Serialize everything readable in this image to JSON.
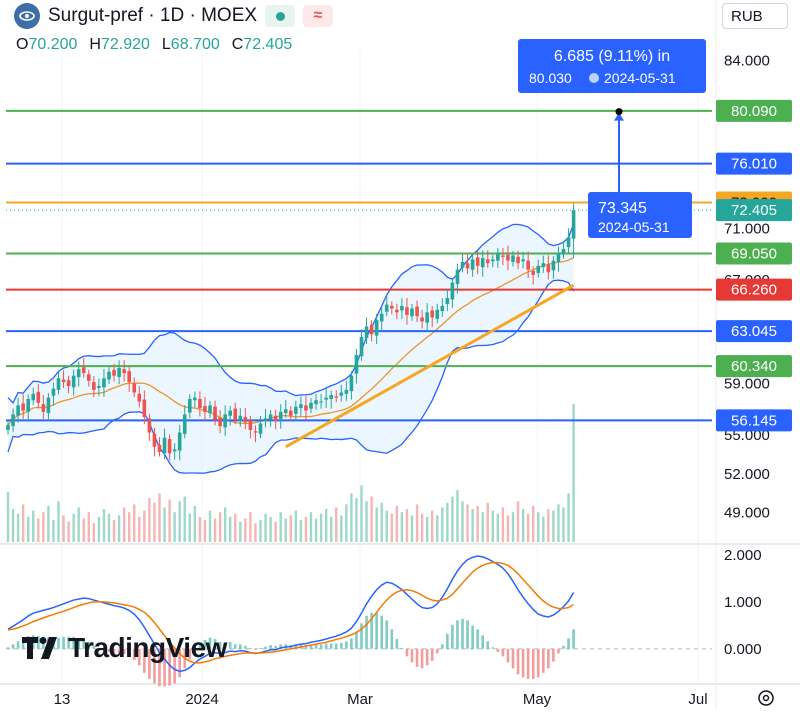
{
  "header": {
    "title": "Surgut-pref · 1D · MOEX",
    "currency": "RUB",
    "ohlc": [
      {
        "label": "O",
        "value": "70.200"
      },
      {
        "label": "H",
        "value": "72.920"
      },
      {
        "label": "L",
        "value": "68.700"
      },
      {
        "label": "C",
        "value": "72.405"
      }
    ],
    "brand": "TradingView",
    "icons": [
      "surgut-logo-icon",
      "market-status-dot-icon",
      "delay-wave-icon",
      "settings-gear-icon"
    ]
  },
  "colors": {
    "up": "#26a69a",
    "down": "#ef5350",
    "green_level": "#43a047",
    "blue_level": "#2962ff",
    "orange": "#f5a623",
    "red_level": "#e53935",
    "band": "#2962ff",
    "band_fill": "#e3f2fd",
    "measure": "#2962ff"
  },
  "chart_data": [
    {
      "type": "candlestick",
      "title": "",
      "x_ticks": [
        "13",
        "2024",
        "Mar",
        "May",
        "Jul"
      ],
      "y_ticks": [
        "84.000",
        "71.000",
        "67.000",
        "59.000",
        "55.000",
        "52.000",
        "49.000"
      ],
      "ylim": [
        46.5,
        86.5
      ],
      "horizontal_levels": [
        {
          "value": "80.090",
          "color": "green"
        },
        {
          "value": "76.010",
          "color": "blue"
        },
        {
          "value": "73.000",
          "color": "orange"
        },
        {
          "value": "72.405",
          "color": "teal",
          "note": "last price"
        },
        {
          "value": "69.050",
          "color": "green"
        },
        {
          "value": "66.260",
          "color": "red"
        },
        {
          "value": "63.045",
          "color": "blue"
        },
        {
          "value": "60.340",
          "color": "green"
        },
        {
          "value": "56.145",
          "color": "blue"
        }
      ],
      "measure": {
        "label_top": "6.685 (9.11%) in",
        "label_top_sub_price": "80.030",
        "label_top_sub_date": "2024-05-31",
        "label_bottom_price": "73.345",
        "label_bottom_date": "2024-05-31",
        "from": 73.345,
        "to": 80.03
      },
      "closes": [
        55.8,
        56.6,
        57.3,
        56.9,
        57.8,
        58.2,
        57.5,
        56.8,
        57.9,
        58.6,
        59.4,
        59.1,
        58.8,
        59.6,
        60.1,
        59.8,
        59.2,
        58.5,
        58.8,
        59.4,
        59.9,
        59.6,
        60.2,
        59.8,
        59.1,
        58.3,
        57.6,
        56.4,
        55.2,
        54.1,
        53.7,
        54.8,
        53.6,
        53.9,
        55.2,
        56.6,
        57.8,
        57.9,
        57.1,
        56.8,
        57.3,
        56.2,
        55.7,
        56.6,
        56.9,
        56.2,
        56.5,
        56.0,
        55.4,
        55.2,
        55.9,
        56.3,
        56.6,
        56.1,
        56.8,
        57.0,
        56.5,
        57.2,
        57.4,
        56.9,
        57.5,
        57.7,
        57.6,
        57.9,
        58.1,
        57.9,
        58.3,
        58.5,
        59.6,
        61.2,
        62.6,
        63.4,
        62.8,
        63.9,
        64.4,
        65.1,
        64.8,
        64.5,
        65.0,
        64.3,
        64.8,
        64.2,
        63.8,
        64.5,
        64.1,
        64.7,
        65.0,
        65.6,
        66.8,
        67.8,
        68.4,
        67.9,
        68.6,
        68.1,
        68.7,
        68.3,
        68.6,
        69.0,
        68.8,
        68.5,
        68.9,
        68.3,
        68.6,
        67.8,
        67.4,
        68.1,
        68.3,
        67.6,
        68.5,
        69.1,
        69.4,
        70.3,
        72.4
      ],
      "volumes": [
        3.2,
        2.1,
        1.8,
        2.4,
        1.6,
        2.0,
        1.5,
        1.9,
        2.3,
        1.4,
        2.6,
        1.7,
        1.3,
        1.8,
        2.2,
        1.5,
        1.9,
        1.2,
        1.6,
        2.1,
        1.8,
        1.4,
        1.7,
        2.2,
        1.9,
        2.4,
        1.6,
        2.0,
        2.8,
        2.5,
        3.1,
        2.2,
        2.7,
        1.9,
        2.6,
        2.9,
        1.8,
        2.3,
        1.6,
        1.4,
        2.0,
        1.5,
        1.9,
        2.2,
        1.6,
        1.8,
        1.3,
        1.5,
        1.9,
        1.2,
        1.4,
        1.8,
        1.6,
        1.3,
        1.9,
        1.5,
        1.7,
        2.0,
        1.4,
        1.6,
        1.9,
        1.5,
        1.8,
        2.1,
        1.6,
        2.2,
        1.7,
        2.4,
        3.1,
        2.8,
        3.6,
        2.6,
        2.9,
        2.2,
        2.5,
        2.0,
        1.8,
        2.3,
        1.9,
        2.1,
        1.7,
        2.4,
        1.8,
        1.6,
        2.0,
        1.7,
        2.2,
        2.5,
        2.9,
        3.3,
        2.6,
        2.4,
        2.1,
        2.3,
        1.9,
        2.5,
        2.0,
        1.8,
        2.2,
        1.7,
        1.9,
        2.6,
        2.1,
        1.8,
        2.3,
        1.9,
        1.6,
        2.1,
        2.0,
        2.4,
        2.2,
        3.1,
        8.8
      ],
      "trendline": {
        "from": [
          55.0,
          54.1
        ],
        "to": [
          112,
          66.6
        ]
      }
    },
    {
      "type": "line",
      "title": "",
      "y_ticks": [
        "2.000",
        "1.000",
        "0.000"
      ],
      "ylim": [
        -0.75,
        2.15
      ],
      "series": [
        {
          "values": [
            0.42,
            0.48,
            0.55,
            0.62,
            0.7,
            0.76,
            0.79,
            0.82,
            0.85,
            0.88,
            0.92,
            0.96,
            1.0,
            1.04,
            1.06,
            1.08,
            1.07,
            1.04,
            1.01,
            0.98,
            0.95,
            0.92,
            0.9,
            0.87,
            0.82,
            0.74,
            0.62,
            0.46,
            0.28,
            0.1,
            -0.08,
            -0.22,
            -0.35,
            -0.44,
            -0.48,
            -0.46,
            -0.4,
            -0.3,
            -0.22,
            -0.16,
            -0.1,
            -0.08,
            -0.1,
            -0.08,
            -0.05,
            -0.06,
            -0.04,
            -0.05,
            -0.08,
            -0.1,
            -0.08,
            -0.05,
            -0.02,
            -0.02,
            0.02,
            0.04,
            0.05,
            0.08,
            0.1,
            0.11,
            0.14,
            0.16,
            0.18,
            0.21,
            0.24,
            0.27,
            0.31,
            0.36,
            0.44,
            0.58,
            0.76,
            0.96,
            1.12,
            1.26,
            1.36,
            1.42,
            1.4,
            1.34,
            1.26,
            1.16,
            1.06,
            0.96,
            0.88,
            0.86,
            0.88,
            0.96,
            1.1,
            1.28,
            1.48,
            1.66,
            1.8,
            1.9,
            1.95,
            1.98,
            1.96,
            1.92,
            1.86,
            1.8,
            1.72,
            1.6,
            1.44,
            1.26,
            1.1,
            0.96,
            0.84,
            0.74,
            0.7,
            0.68,
            0.72,
            0.8,
            0.9,
            1.02,
            1.2
          ]
        },
        {
          "values": [
            0.4,
            0.42,
            0.45,
            0.49,
            0.53,
            0.58,
            0.62,
            0.66,
            0.7,
            0.73,
            0.77,
            0.8,
            0.84,
            0.88,
            0.92,
            0.95,
            0.98,
            1.0,
            1.0,
            1.0,
            0.99,
            0.98,
            0.96,
            0.94,
            0.92,
            0.89,
            0.84,
            0.78,
            0.68,
            0.56,
            0.42,
            0.28,
            0.14,
            0.02,
            -0.1,
            -0.2,
            -0.26,
            -0.3,
            -0.3,
            -0.28,
            -0.25,
            -0.21,
            -0.19,
            -0.16,
            -0.14,
            -0.12,
            -0.1,
            -0.09,
            -0.09,
            -0.09,
            -0.09,
            -0.08,
            -0.07,
            -0.06,
            -0.04,
            -0.02,
            0.0,
            0.02,
            0.04,
            0.06,
            0.08,
            0.1,
            0.12,
            0.14,
            0.17,
            0.2,
            0.23,
            0.26,
            0.3,
            0.35,
            0.42,
            0.52,
            0.64,
            0.78,
            0.92,
            1.04,
            1.14,
            1.21,
            1.25,
            1.26,
            1.24,
            1.2,
            1.14,
            1.08,
            1.04,
            1.02,
            1.04,
            1.08,
            1.16,
            1.28,
            1.4,
            1.52,
            1.64,
            1.72,
            1.78,
            1.82,
            1.84,
            1.84,
            1.82,
            1.78,
            1.7,
            1.6,
            1.48,
            1.36,
            1.24,
            1.12,
            1.02,
            0.94,
            0.89,
            0.86,
            0.86,
            0.88,
            0.94
          ]
        }
      ]
    }
  ]
}
